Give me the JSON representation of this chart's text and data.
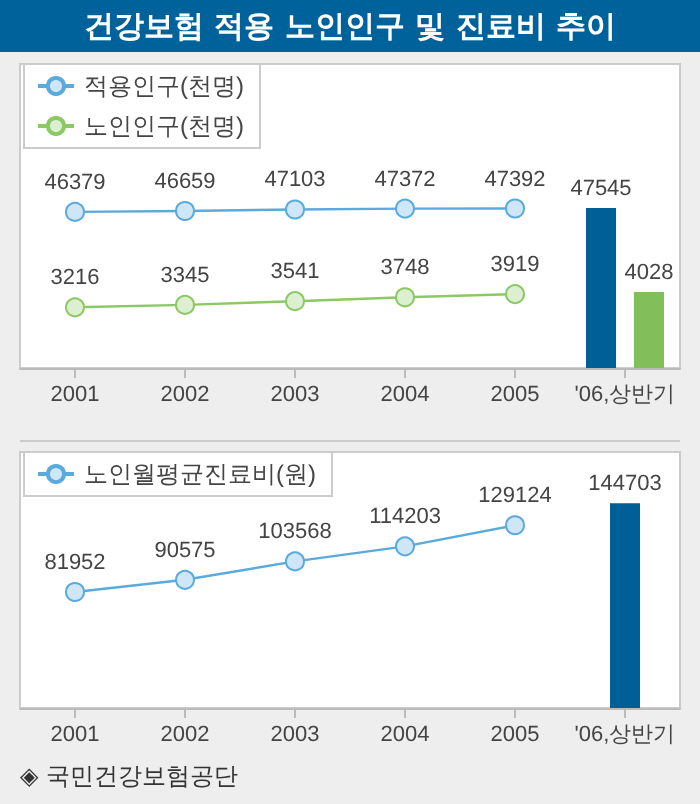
{
  "chart_data": [
    {
      "type": "line",
      "title": "건강보험 적용 노인인구 및 진료비 추이",
      "categories": [
        "2001",
        "2002",
        "2003",
        "2004",
        "2005",
        "'06,상반기"
      ],
      "series": [
        {
          "name": "적용인구(천명)",
          "color": "#5aaade",
          "values": [
            46379,
            46659,
            47103,
            47372,
            47392,
            null
          ]
        },
        {
          "name": "노인인구(천명)",
          "color": "#8cc864",
          "axis": "y2",
          "values": [
            3216,
            3345,
            3541,
            3748,
            3919,
            null
          ]
        },
        {
          "type": "bar",
          "color": "#005f96",
          "values": [
            null,
            null,
            null,
            null,
            null,
            47545
          ]
        },
        {
          "type": "bar",
          "color": "#80bf5a",
          "axis": "y2",
          "values": [
            null,
            null,
            null,
            null,
            null,
            4028
          ]
        }
      ],
      "data_labels": true,
      "legend": "top left",
      "marker": "circle",
      "tick_labels": "x"
    },
    {
      "type": "line",
      "categories": [
        "2001",
        "2002",
        "2003",
        "2004",
        "2005",
        "'06,상반기"
      ],
      "series": [
        {
          "name": "노인월평균진료비(원)",
          "color": "#5aaade",
          "values": [
            81952,
            90575,
            103568,
            114203,
            129124,
            null
          ]
        },
        {
          "type": "bar",
          "color": "#005f96",
          "values": [
            null,
            null,
            null,
            null,
            null,
            144703
          ]
        }
      ],
      "data_labels": true,
      "legend": "top left",
      "marker": "circle",
      "tick_labels": "x",
      "annotations": [
        "◈ 국민건강보험공단"
      ]
    }
  ]
}
